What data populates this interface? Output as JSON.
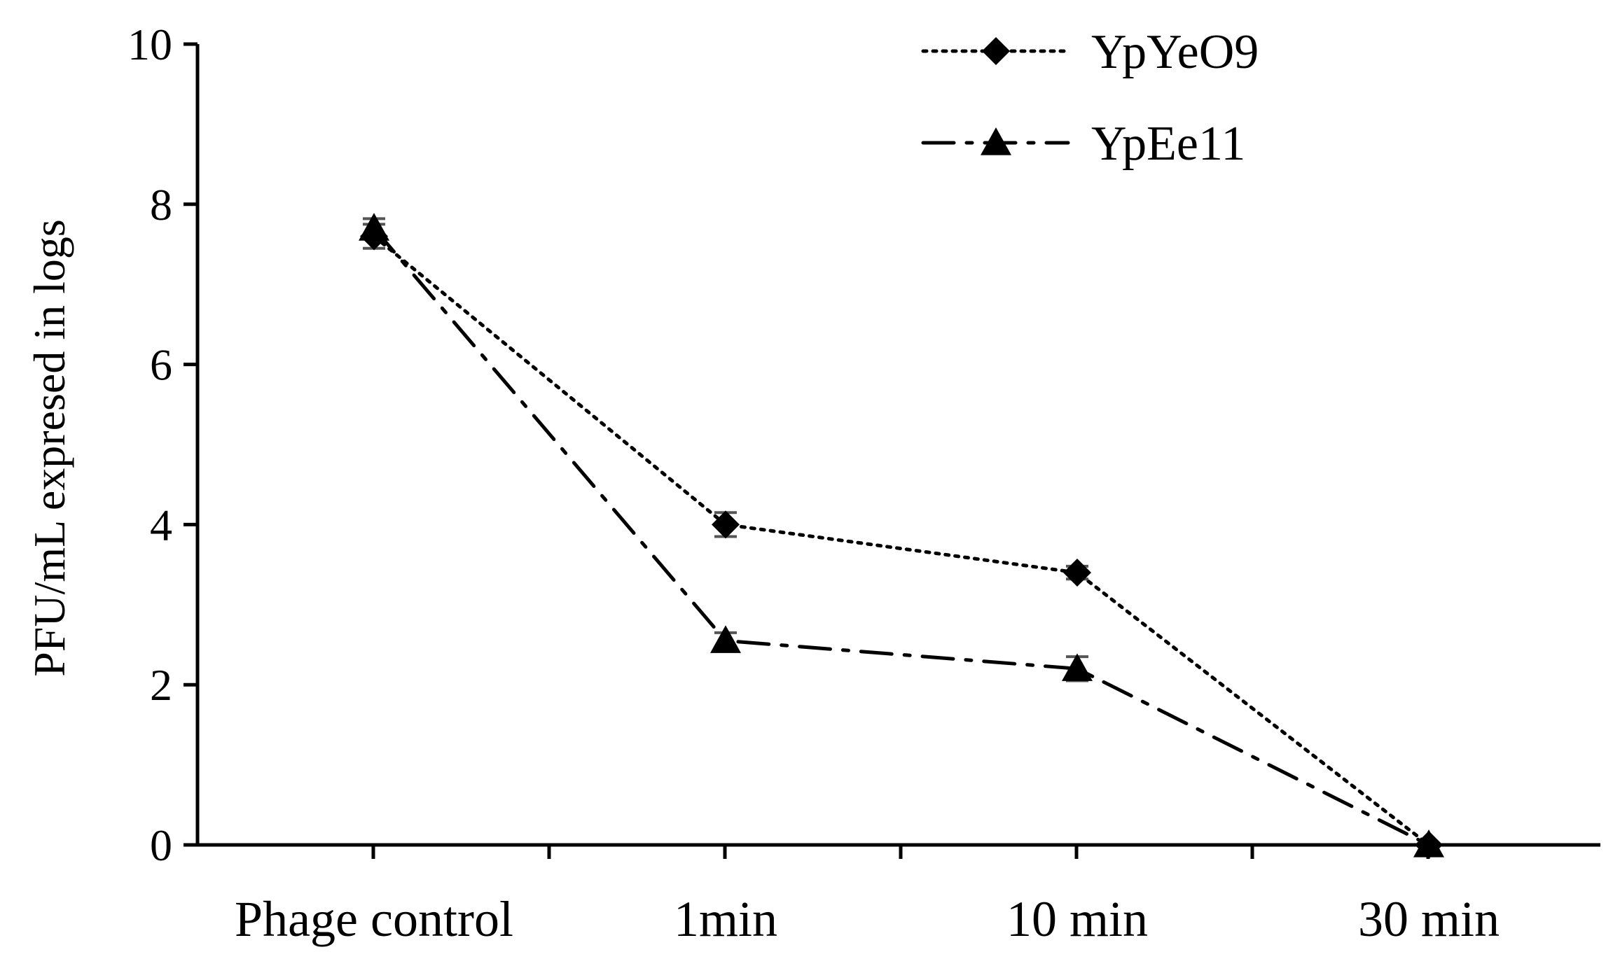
{
  "chart_data": {
    "type": "line",
    "title": "",
    "xlabel": "",
    "ylabel": "PFU/mL expresed in logs",
    "categories": [
      "Phage control",
      "1min",
      "10 min",
      "30 min"
    ],
    "ylim": [
      0,
      10
    ],
    "yticks": [
      "0",
      "2",
      "4",
      "6",
      "8",
      "10"
    ],
    "grid": false,
    "legend_position": "top-right",
    "series": [
      {
        "name": "YpYeO9",
        "marker": "diamond",
        "line_style": "dotted",
        "values": [
          7.6,
          4.0,
          3.4,
          0.0
        ],
        "errors": [
          0.15,
          0.15,
          0.08,
          0.0
        ]
      },
      {
        "name": "YpEe11",
        "marker": "triangle",
        "line_style": "dash-dot",
        "values": [
          7.7,
          2.55,
          2.2,
          0.0
        ],
        "errors": [
          0.12,
          0.1,
          0.15,
          0.0
        ]
      }
    ],
    "colors": {
      "line": "#000000",
      "error_bar": "#555555",
      "background": "#ffffff"
    }
  }
}
